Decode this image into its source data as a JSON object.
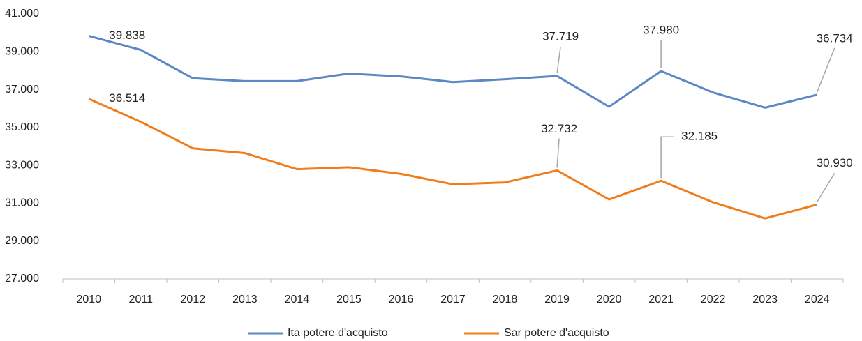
{
  "chart_data": {
    "type": "line",
    "categories": [
      "2010",
      "2011",
      "2012",
      "2013",
      "2014",
      "2015",
      "2016",
      "2017",
      "2018",
      "2019",
      "2020",
      "2021",
      "2022",
      "2023",
      "2024"
    ],
    "series": [
      {
        "name": "Ita potere d'acquisto",
        "color": "#5b87c5",
        "values": [
          39838,
          39100,
          37600,
          37450,
          37450,
          37850,
          37700,
          37400,
          37550,
          37719,
          36100,
          37980,
          36850,
          36050,
          36734
        ],
        "value_labels": [
          "39.838",
          null,
          null,
          null,
          null,
          null,
          null,
          null,
          null,
          "37.719",
          null,
          "37.980",
          null,
          null,
          "36.734"
        ]
      },
      {
        "name": "Sar potere d'acquisto",
        "color": "#f07d1a",
        "values": [
          36514,
          35300,
          33900,
          33650,
          32800,
          32900,
          32550,
          32000,
          32100,
          32732,
          31200,
          32185,
          31050,
          30200,
          30930
        ],
        "value_labels": [
          "36.514",
          null,
          null,
          null,
          null,
          null,
          null,
          null,
          null,
          "32.732",
          null,
          "32.185",
          null,
          null,
          "30.930"
        ]
      }
    ],
    "ylim": [
      27000,
      41000
    ],
    "yticks": [
      {
        "value": 27000,
        "label": "27.000"
      },
      {
        "value": 29000,
        "label": "29.000"
      },
      {
        "value": 31000,
        "label": "31.000"
      },
      {
        "value": 33000,
        "label": "33.000"
      },
      {
        "value": 35000,
        "label": "35.000"
      },
      {
        "value": 37000,
        "label": "37.000"
      },
      {
        "value": 39000,
        "label": "39.000"
      },
      {
        "value": 41000,
        "label": "41.000"
      }
    ],
    "legend": "bottom"
  }
}
